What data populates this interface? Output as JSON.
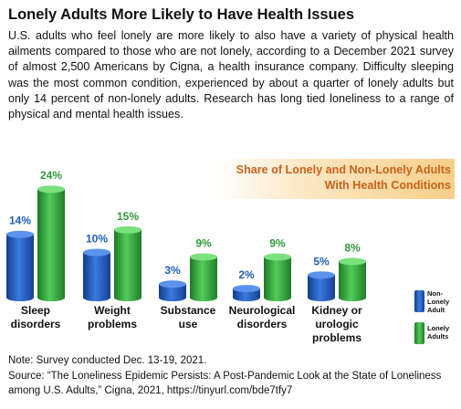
{
  "title": "Lonely Adults More Likely to Have Health Issues",
  "body": "U.S. adults who feel lonely are more likely to also have a variety of physical health ailments compared to those who are not lonely, according to a December 2021 survey of almost 2,500 Americans by Cigna, a health insurance company. Difficulty sleeping was the most common condition, experienced by about a quarter of lonely adults but only 14 percent of non-lonely adults. Research has long tied loneliness to a range of physical and mental health issues.",
  "chart_data": {
    "type": "bar",
    "title_lines": [
      "Share of Lonely and Non-Lonely Adults",
      "With Health Conditions"
    ],
    "categories": [
      [
        "Sleep",
        "disorders"
      ],
      [
        "Weight",
        "problems"
      ],
      [
        "Substance",
        "use"
      ],
      [
        "Neurological",
        "disorders"
      ],
      [
        "Kidney or",
        "urologic",
        "problems"
      ]
    ],
    "series": [
      {
        "name": "Non-Lonely Adult",
        "legend_lines": [
          "Non-",
          "Lonely",
          "Adult"
        ],
        "values": [
          14,
          10,
          3,
          2,
          5
        ],
        "labels": [
          "14%",
          "10%",
          "3%",
          "2%",
          "5%"
        ],
        "color": "#2a64c8"
      },
      {
        "name": "Lonely Adults",
        "legend_lines": [
          "Lonely",
          "Adults"
        ],
        "values": [
          24,
          15,
          9,
          9,
          8
        ],
        "labels": [
          "24%",
          "15%",
          "9%",
          "9%",
          "8%"
        ],
        "color": "#3cb043"
      }
    ],
    "label_colors": {
      "non_lonely": "#1f5fb8",
      "lonely": "#2f9a3a"
    },
    "ylim": [
      0,
      24
    ],
    "grid": false,
    "legend_position": "bottom-right"
  },
  "note": "Note: Survey conducted Dec. 13-19, 2021.",
  "source": "Source: “The Loneliness Epidemic Persists: A Post-Pandemic Look at the State of Loneliness among U.S. Adults,” Cigna, 2021, https://tinyurl.com/bde7tfy7"
}
